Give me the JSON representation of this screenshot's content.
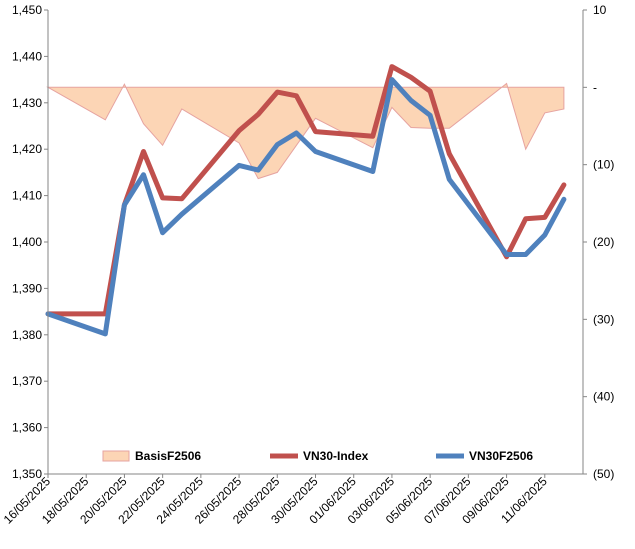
{
  "chart_data": {
    "type": "line",
    "title": "",
    "x": [
      "16/05/2025",
      "19/05/2025",
      "20/05/2025",
      "21/05/2025",
      "22/05/2025",
      "23/05/2025",
      "26/05/2025",
      "27/05/2025",
      "28/05/2025",
      "29/05/2025",
      "30/05/2025",
      "02/06/2025",
      "03/06/2025",
      "04/06/2025",
      "05/06/2025",
      "06/06/2025",
      "09/06/2025",
      "10/06/2025",
      "11/06/2025",
      "12/06/2025",
      "13/06/2025"
    ],
    "x_tick_labels": [
      "16/05/2025",
      "18/05/2025",
      "20/05/2025",
      "22/05/2025",
      "24/05/2025",
      "26/05/2025",
      "28/05/2025",
      "30/05/2025",
      "01/06/2025",
      "03/06/2025",
      "05/06/2025",
      "07/06/2025",
      "09/06/2025",
      "11/06/2025"
    ],
    "x_range": [
      "16/05/2025",
      "13/06/2025"
    ],
    "y_left": {
      "range": [
        1350,
        1450
      ],
      "ticks": [
        "1,350",
        "1,360",
        "1,370",
        "1,380",
        "1,390",
        "1,400",
        "1,410",
        "1,420",
        "1,430",
        "1,440",
        "1,450"
      ]
    },
    "y_right": {
      "range": [
        -50,
        10
      ],
      "ticks": [
        "(50)",
        "(40)",
        "(30)",
        "(20)",
        "(10)",
        "-",
        "10"
      ]
    },
    "grid": false,
    "legend_position": "bottom",
    "series": [
      {
        "name": "BasisF2506",
        "axis": "right",
        "kind": "area",
        "color": "#fcd5b5",
        "edge_color": "#e6a3a0",
        "points": [
          {
            "x": "16/05/2025",
            "y": 0
          },
          {
            "x": "19/05/2025",
            "y": -4.2
          },
          {
            "x": "20/05/2025",
            "y": 0.4
          },
          {
            "x": "21/05/2025",
            "y": -4.7
          },
          {
            "x": "22/05/2025",
            "y": -7.5
          },
          {
            "x": "23/05/2025",
            "y": -2.8
          },
          {
            "x": "26/05/2025",
            "y": -7.2
          },
          {
            "x": "27/05/2025",
            "y": -11.8
          },
          {
            "x": "28/05/2025",
            "y": -11.0
          },
          {
            "x": "30/05/2025",
            "y": -4.0
          },
          {
            "x": "02/06/2025",
            "y": -7.8
          },
          {
            "x": "03/06/2025",
            "y": -2.6
          },
          {
            "x": "04/06/2025",
            "y": -5.2
          },
          {
            "x": "05/06/2025",
            "y": -5.3
          },
          {
            "x": "06/06/2025",
            "y": -5.3
          },
          {
            "x": "09/06/2025",
            "y": 0.5
          },
          {
            "x": "10/06/2025",
            "y": -8.0
          },
          {
            "x": "11/06/2025",
            "y": -3.3
          },
          {
            "x": "12/06/2025",
            "y": -2.8
          }
        ]
      },
      {
        "name": "VN30-Index",
        "axis": "left",
        "kind": "line",
        "color": "#c0504d",
        "points": [
          {
            "x": "16/05/2025",
            "y": 1384.5
          },
          {
            "x": "19/05/2025",
            "y": 1384.5
          },
          {
            "x": "20/05/2025",
            "y": 1408.0
          },
          {
            "x": "21/05/2025",
            "y": 1419.5
          },
          {
            "x": "22/05/2025",
            "y": 1409.5
          },
          {
            "x": "23/05/2025",
            "y": 1409.3
          },
          {
            "x": "26/05/2025",
            "y": 1424.0
          },
          {
            "x": "27/05/2025",
            "y": 1427.5
          },
          {
            "x": "28/05/2025",
            "y": 1432.3
          },
          {
            "x": "29/05/2025",
            "y": 1431.5
          },
          {
            "x": "30/05/2025",
            "y": 1423.8
          },
          {
            "x": "02/06/2025",
            "y": 1422.8
          },
          {
            "x": "03/06/2025",
            "y": 1437.8
          },
          {
            "x": "04/06/2025",
            "y": 1435.5
          },
          {
            "x": "05/06/2025",
            "y": 1432.5
          },
          {
            "x": "06/06/2025",
            "y": 1419.0
          },
          {
            "x": "09/06/2025",
            "y": 1396.8
          },
          {
            "x": "10/06/2025",
            "y": 1405.0
          },
          {
            "x": "11/06/2025",
            "y": 1405.3
          },
          {
            "x": "12/06/2025",
            "y": 1412.3
          }
        ]
      },
      {
        "name": "VN30F2506",
        "axis": "left",
        "kind": "line",
        "color": "#4f81bd",
        "points": [
          {
            "x": "16/05/2025",
            "y": 1384.5
          },
          {
            "x": "19/05/2025",
            "y": 1380.2
          },
          {
            "x": "20/05/2025",
            "y": 1408.0
          },
          {
            "x": "21/05/2025",
            "y": 1414.5
          },
          {
            "x": "22/05/2025",
            "y": 1402.0
          },
          {
            "x": "23/05/2025",
            "y": 1406.0
          },
          {
            "x": "26/05/2025",
            "y": 1416.5
          },
          {
            "x": "27/05/2025",
            "y": 1415.5
          },
          {
            "x": "28/05/2025",
            "y": 1421.0
          },
          {
            "x": "29/05/2025",
            "y": 1423.5
          },
          {
            "x": "30/05/2025",
            "y": 1419.5
          },
          {
            "x": "02/06/2025",
            "y": 1415.2
          },
          {
            "x": "03/06/2025",
            "y": 1435.0
          },
          {
            "x": "04/06/2025",
            "y": 1430.5
          },
          {
            "x": "05/06/2025",
            "y": 1427.3
          },
          {
            "x": "06/06/2025",
            "y": 1413.5
          },
          {
            "x": "09/06/2025",
            "y": 1397.3
          },
          {
            "x": "10/06/2025",
            "y": 1397.3
          },
          {
            "x": "11/06/2025",
            "y": 1401.5
          },
          {
            "x": "12/06/2025",
            "y": 1409.2
          }
        ]
      }
    ]
  }
}
